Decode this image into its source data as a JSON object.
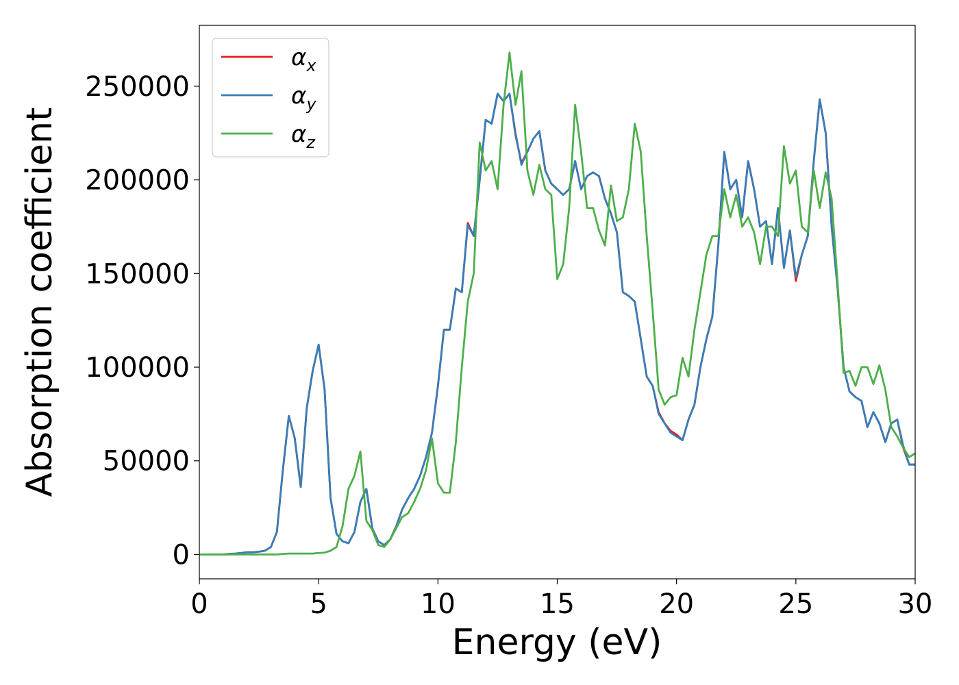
{
  "chart_data": {
    "type": "line",
    "xlabel": "Energy (eV)",
    "ylabel": "Absorption coefficient",
    "x": [
      0,
      0.25,
      0.5,
      0.75,
      1,
      1.25,
      1.5,
      1.75,
      2,
      2.25,
      2.5,
      2.75,
      3,
      3.25,
      3.5,
      3.75,
      4,
      4.25,
      4.5,
      4.75,
      5,
      5.25,
      5.5,
      5.75,
      6,
      6.25,
      6.5,
      6.75,
      7,
      7.25,
      7.5,
      7.75,
      8,
      8.25,
      8.5,
      8.75,
      9,
      9.25,
      9.5,
      9.75,
      10,
      10.25,
      10.5,
      10.75,
      11,
      11.25,
      11.5,
      11.75,
      12,
      12.25,
      12.5,
      12.75,
      13,
      13.25,
      13.5,
      13.75,
      14,
      14.25,
      14.5,
      14.75,
      15,
      15.25,
      15.5,
      15.75,
      16,
      16.25,
      16.5,
      16.75,
      17,
      17.25,
      17.5,
      17.75,
      18,
      18.25,
      18.5,
      18.75,
      19,
      19.25,
      19.5,
      19.75,
      20,
      20.25,
      20.5,
      20.75,
      21,
      21.25,
      21.5,
      21.75,
      22,
      22.25,
      22.5,
      22.75,
      23,
      23.25,
      23.5,
      23.75,
      24,
      24.25,
      24.5,
      24.75,
      25,
      25.25,
      25.5,
      25.75,
      26,
      26.25,
      26.5,
      26.75,
      27,
      27.25,
      27.5,
      27.75,
      28,
      28.25,
      28.5,
      28.75,
      29,
      29.25,
      29.5,
      29.75,
      30
    ],
    "series": [
      {
        "name": "αx",
        "color": "#e41a1c",
        "values": [
          0,
          0,
          0,
          0,
          0,
          300,
          500,
          800,
          1200,
          1200,
          1500,
          2000,
          4000,
          12000,
          45000,
          74000,
          62000,
          36000,
          78000,
          98000,
          112000,
          88000,
          30000,
          11000,
          7000,
          6000,
          12000,
          28000,
          35000,
          14000,
          7000,
          5000,
          8000,
          15000,
          24000,
          30000,
          35000,
          42000,
          52000,
          65000,
          90000,
          120000,
          120000,
          142000,
          140000,
          177000,
          170000,
          200000,
          232000,
          230000,
          246000,
          242000,
          246000,
          224000,
          209000,
          215000,
          222000,
          226000,
          205000,
          198000,
          195000,
          192000,
          195000,
          210000,
          195000,
          202000,
          204000,
          202000,
          190000,
          182000,
          172000,
          140000,
          138000,
          135000,
          115000,
          95000,
          90000,
          76000,
          70000,
          66000,
          64000,
          61000,
          72000,
          80000,
          100000,
          115000,
          127000,
          165000,
          215000,
          195000,
          200000,
          180000,
          210000,
          195000,
          175000,
          178000,
          155000,
          185000,
          153000,
          173000,
          146000,
          160000,
          170000,
          210000,
          243000,
          225000,
          175000,
          142000,
          100000,
          87000,
          84000,
          82000,
          68000,
          76000,
          70000,
          60000,
          70000,
          72000,
          57000,
          48000,
          48000
        ]
      },
      {
        "name": "αy",
        "color": "#377eb8",
        "values": [
          0,
          0,
          0,
          0,
          0,
          300,
          500,
          800,
          1200,
          1200,
          1500,
          2000,
          4000,
          12000,
          45000,
          74000,
          62000,
          36000,
          78000,
          98000,
          112000,
          88000,
          30000,
          11000,
          7000,
          6000,
          12000,
          28000,
          35000,
          14000,
          7000,
          5000,
          8000,
          15000,
          24000,
          30000,
          35000,
          42000,
          52000,
          65000,
          90000,
          120000,
          120000,
          142000,
          140000,
          176000,
          170000,
          200000,
          232000,
          230000,
          246000,
          242000,
          246000,
          225000,
          208000,
          215000,
          222000,
          226000,
          205000,
          198000,
          195000,
          192000,
          195000,
          210000,
          195000,
          202000,
          204000,
          202000,
          190000,
          182000,
          172000,
          140000,
          138000,
          135000,
          115000,
          95000,
          90000,
          75000,
          70000,
          65000,
          63000,
          61000,
          72000,
          80000,
          100000,
          115000,
          127000,
          165000,
          215000,
          195000,
          200000,
          180000,
          210000,
          195000,
          175000,
          178000,
          155000,
          185000,
          153000,
          173000,
          148000,
          160000,
          170000,
          210000,
          243000,
          225000,
          175000,
          142000,
          100000,
          87000,
          84000,
          82000,
          68000,
          76000,
          70000,
          60000,
          70000,
          72000,
          58000,
          48000,
          48000
        ]
      },
      {
        "name": "αz",
        "color": "#4daf4a",
        "values": [
          0,
          0,
          0,
          0,
          0,
          0,
          0,
          0,
          0,
          0,
          0,
          0,
          0,
          0,
          300,
          500,
          500,
          500,
          500,
          500,
          800,
          1000,
          2000,
          4000,
          15000,
          35000,
          42000,
          55000,
          18000,
          13000,
          5000,
          4000,
          8000,
          14000,
          20000,
          22000,
          28000,
          35000,
          45000,
          62000,
          38000,
          33000,
          33000,
          60000,
          100000,
          135000,
          150000,
          220000,
          205000,
          210000,
          195000,
          240000,
          268000,
          240000,
          258000,
          205000,
          192000,
          208000,
          195000,
          192000,
          147000,
          155000,
          185000,
          240000,
          215000,
          185000,
          185000,
          173000,
          165000,
          197000,
          178000,
          180000,
          195000,
          230000,
          215000,
          170000,
          130000,
          88000,
          80000,
          84000,
          85000,
          105000,
          95000,
          120000,
          140000,
          160000,
          170000,
          170000,
          195000,
          180000,
          192000,
          175000,
          180000,
          172000,
          155000,
          175000,
          175000,
          170000,
          218000,
          198000,
          205000,
          175000,
          172000,
          205000,
          185000,
          204000,
          190000,
          145000,
          97000,
          98000,
          90000,
          100000,
          100000,
          91000,
          101000,
          88000,
          68000,
          63000,
          57000,
          52000,
          54000
        ]
      }
    ],
    "xlim": [
      0,
      30
    ],
    "ylim": [
      -13000,
      282500
    ],
    "xticks": [
      0,
      5,
      10,
      15,
      20,
      25,
      30
    ],
    "yticks": [
      0,
      50000,
      100000,
      150000,
      200000,
      250000
    ],
    "grid": false,
    "legend": "upper left"
  }
}
